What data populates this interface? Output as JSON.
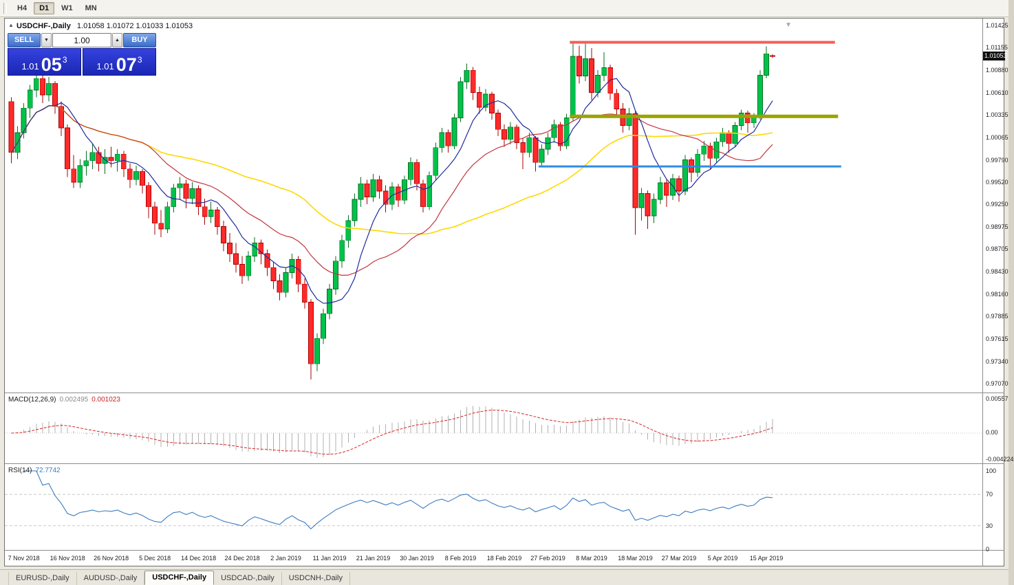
{
  "toolbar": {
    "timeframes": [
      {
        "label": "H4",
        "active": false
      },
      {
        "label": "D1",
        "active": true
      },
      {
        "label": "W1",
        "active": false
      },
      {
        "label": "MN",
        "active": false
      }
    ]
  },
  "chart_header": {
    "symbol_title": "USDCHF-,Daily",
    "ohlc": "1.01058 1.01072 1.01033 1.01053"
  },
  "trade_panel": {
    "sell_label": "SELL",
    "buy_label": "BUY",
    "volume": "1.00",
    "spin_down": "▼",
    "spin_up": "▲",
    "bid_small": "1.01",
    "bid_big": "05",
    "bid_sup": "3",
    "ask_small": "1.01",
    "ask_big": "07",
    "ask_sup": "3"
  },
  "price_axis": {
    "labels": [
      "1.01425",
      "1.01155",
      "1.00880",
      "1.00610",
      "1.00335",
      "1.00065",
      "0.99790",
      "0.99520",
      "0.99250",
      "0.98975",
      "0.98705",
      "0.98430",
      "0.98160",
      "0.97885",
      "0.97615",
      "0.97340",
      "0.97070"
    ],
    "current": "1.01053"
  },
  "macd_panel": {
    "title": "MACD(12,26,9)",
    "value1": "0.002495",
    "value2": "0.001023",
    "axis": [
      "0.00557",
      "0.00",
      "-0.004224"
    ]
  },
  "rsi_panel": {
    "title": "RSI(14)",
    "value": "72.7742",
    "axis": [
      "100",
      "70",
      "30",
      "0"
    ]
  },
  "tabs": [
    {
      "label": "EURUSD-,Daily",
      "active": false
    },
    {
      "label": "AUDUSD-,Daily",
      "active": false
    },
    {
      "label": "USDCHF-,Daily",
      "active": true
    },
    {
      "label": "USDCAD-,Daily",
      "active": false
    },
    {
      "label": "USDCNH-,Daily",
      "active": false
    }
  ],
  "chart_data": {
    "type": "candlestick",
    "symbol": "USDCHF",
    "timeframe": "Daily",
    "current_price": 1.01053,
    "price_scale": {
      "top": 1.01425,
      "bottom": 0.9707
    },
    "colors": {
      "bull": "#00c24a",
      "bull_border": "#066e22",
      "bear": "#ff2a2a",
      "bear_border": "#a80000",
      "grid": "#c0c0c0"
    },
    "moving_averages": [
      {
        "name": "ma-slow",
        "period": 45,
        "color": "#ffd800",
        "width": 1.6
      },
      {
        "name": "ma-mid",
        "period": 21,
        "color": "#c2353f",
        "width": 1.2
      },
      {
        "name": "ma-fast",
        "period": 8,
        "color": "#1f2a9e",
        "width": 1.2
      }
    ],
    "horizontal_lines": [
      {
        "name": "resistance-line-red",
        "price": 1.0122,
        "color": "#f2605a",
        "width": 4,
        "from_index": 89.5,
        "to_index": 132
      },
      {
        "name": "support-line-olive",
        "price": 1.0032,
        "color": "#9aa400",
        "width": 5,
        "from_index": 89.5,
        "to_index": 132.5
      },
      {
        "name": "support-line-blue",
        "price": 0.9971,
        "color": "#2e8be6",
        "width": 3,
        "from_index": 84.5,
        "to_index": 133
      }
    ],
    "macd": {
      "fast": 12,
      "slow": 26,
      "signal": 9,
      "hist_color": "#b0b0b0",
      "signal_color": "#d42424"
    },
    "rsi": {
      "period": 14,
      "color": "#3a7abf",
      "levels": [
        70,
        30
      ]
    },
    "date_ticks": [
      {
        "i": 2,
        "label": "7 Nov 2018"
      },
      {
        "i": 9,
        "label": "16 Nov 2018"
      },
      {
        "i": 16,
        "label": "26 Nov 2018"
      },
      {
        "i": 23,
        "label": "5 Dec 2018"
      },
      {
        "i": 30,
        "label": "14 Dec 2018"
      },
      {
        "i": 37,
        "label": "24 Dec 2018"
      },
      {
        "i": 44,
        "label": "2 Jan 2019"
      },
      {
        "i": 51,
        "label": "11 Jan 2019"
      },
      {
        "i": 58,
        "label": "21 Jan 2019"
      },
      {
        "i": 65,
        "label": "30 Jan 2019"
      },
      {
        "i": 72,
        "label": "8 Feb 2019"
      },
      {
        "i": 79,
        "label": "18 Feb 2019"
      },
      {
        "i": 86,
        "label": "27 Feb 2019"
      },
      {
        "i": 93,
        "label": "8 Mar 2019"
      },
      {
        "i": 100,
        "label": "18 Mar 2019"
      },
      {
        "i": 107,
        "label": "27 Mar 2019"
      },
      {
        "i": 114,
        "label": "5 Apr 2019"
      },
      {
        "i": 121,
        "label": "15 Apr 2019"
      }
    ],
    "ohlc": [
      [
        1.005,
        1.0055,
        0.9975,
        0.9988
      ],
      [
        0.9988,
        1.002,
        0.998,
        1.0012
      ],
      [
        1.0012,
        1.0048,
        1.0005,
        1.0042
      ],
      [
        1.0042,
        1.007,
        1.003,
        1.0064
      ],
      [
        1.0064,
        1.0088,
        1.0055,
        1.0078
      ],
      [
        1.0078,
        1.0085,
        1.0048,
        1.0058
      ],
      [
        1.0058,
        1.008,
        1.005,
        1.0072
      ],
      [
        1.0072,
        1.0075,
        1.0035,
        1.0044
      ],
      [
        1.0044,
        1.005,
        1.0008,
        1.0018
      ],
      [
        1.0018,
        1.0022,
        0.9958,
        0.9968
      ],
      [
        0.9968,
        0.9985,
        0.9945,
        0.9952
      ],
      [
        0.9952,
        0.998,
        0.9945,
        0.9972
      ],
      [
        0.9972,
        0.999,
        0.996,
        0.9978
      ],
      [
        0.9978,
        0.9998,
        0.9968,
        0.9988
      ],
      [
        0.9988,
        0.9995,
        0.9965,
        0.9975
      ],
      [
        0.9975,
        0.9992,
        0.9962,
        0.9982
      ],
      [
        0.9982,
        0.9995,
        0.997,
        0.9978
      ],
      [
        0.9978,
        0.9992,
        0.9965,
        0.9986
      ],
      [
        0.9986,
        0.999,
        0.9958,
        0.9968
      ],
      [
        0.9968,
        0.9975,
        0.9945,
        0.9955
      ],
      [
        0.9955,
        0.9972,
        0.9948,
        0.9965
      ],
      [
        0.9965,
        0.9968,
        0.9938,
        0.9948
      ],
      [
        0.9948,
        0.9952,
        0.9908,
        0.9922
      ],
      [
        0.9922,
        0.9928,
        0.9888,
        0.9902
      ],
      [
        0.9902,
        0.9918,
        0.9885,
        0.9895
      ],
      [
        0.9895,
        0.9928,
        0.989,
        0.9922
      ],
      [
        0.9922,
        0.995,
        0.9915,
        0.9945
      ],
      [
        0.9945,
        0.9958,
        0.993,
        0.995
      ],
      [
        0.995,
        0.9955,
        0.992,
        0.9932
      ],
      [
        0.9932,
        0.9952,
        0.9925,
        0.9944
      ],
      [
        0.9944,
        0.9948,
        0.9912,
        0.9922
      ],
      [
        0.9922,
        0.9932,
        0.99,
        0.991
      ],
      [
        0.991,
        0.9928,
        0.9902,
        0.9918
      ],
      [
        0.9918,
        0.9922,
        0.9888,
        0.9898
      ],
      [
        0.9898,
        0.9905,
        0.9868,
        0.9878
      ],
      [
        0.9878,
        0.989,
        0.9855,
        0.9865
      ],
      [
        0.9865,
        0.9878,
        0.9842,
        0.9852
      ],
      [
        0.9852,
        0.9862,
        0.9828,
        0.9838
      ],
      [
        0.9838,
        0.9868,
        0.9832,
        0.9862
      ],
      [
        0.9862,
        0.9885,
        0.9855,
        0.9878
      ],
      [
        0.9878,
        0.9882,
        0.9852,
        0.9865
      ],
      [
        0.9865,
        0.987,
        0.9838,
        0.9848
      ],
      [
        0.9848,
        0.9855,
        0.9822,
        0.9832
      ],
      [
        0.9832,
        0.984,
        0.9808,
        0.9818
      ],
      [
        0.9818,
        0.9848,
        0.9812,
        0.9842
      ],
      [
        0.9842,
        0.9865,
        0.9835,
        0.9858
      ],
      [
        0.9858,
        0.9862,
        0.9818,
        0.9828
      ],
      [
        0.9828,
        0.9835,
        0.9798,
        0.9806
      ],
      [
        0.9806,
        0.981,
        0.9712,
        0.9731
      ],
      [
        0.9731,
        0.9768,
        0.9722,
        0.9762
      ],
      [
        0.9762,
        0.9798,
        0.9755,
        0.9792
      ],
      [
        0.9792,
        0.9828,
        0.9785,
        0.9822
      ],
      [
        0.9822,
        0.9862,
        0.9815,
        0.9856
      ],
      [
        0.9856,
        0.9888,
        0.9848,
        0.9881
      ],
      [
        0.9881,
        0.9912,
        0.9872,
        0.9905
      ],
      [
        0.9905,
        0.9938,
        0.9898,
        0.9931
      ],
      [
        0.9931,
        0.9958,
        0.9922,
        0.995
      ],
      [
        0.995,
        0.9955,
        0.9925,
        0.9934
      ],
      [
        0.9934,
        0.9962,
        0.9928,
        0.9955
      ],
      [
        0.9955,
        0.996,
        0.9932,
        0.9941
      ],
      [
        0.9941,
        0.9948,
        0.9915,
        0.9925
      ],
      [
        0.9925,
        0.9952,
        0.9918,
        0.9946
      ],
      [
        0.9946,
        0.995,
        0.9922,
        0.993
      ],
      [
        0.993,
        0.996,
        0.9925,
        0.9955
      ],
      [
        0.9955,
        0.9982,
        0.9948,
        0.9976
      ],
      [
        0.9976,
        0.998,
        0.9942,
        0.995
      ],
      [
        0.995,
        0.9955,
        0.9915,
        0.9922
      ],
      [
        0.9922,
        0.9965,
        0.9918,
        0.996
      ],
      [
        0.996,
        1.0,
        0.9955,
        0.9994
      ],
      [
        0.9994,
        1.0018,
        0.9988,
        1.0012
      ],
      [
        1.0012,
        1.0016,
        0.9988,
        0.9996
      ],
      [
        0.9996,
        1.0035,
        0.9992,
        1.003
      ],
      [
        1.003,
        1.008,
        1.0025,
        1.0074
      ],
      [
        1.0074,
        1.0096,
        1.0065,
        1.0088
      ],
      [
        1.0088,
        1.0092,
        1.0052,
        1.0061
      ],
      [
        1.0061,
        1.0068,
        1.0035,
        1.0043
      ],
      [
        1.0043,
        1.0065,
        1.0038,
        1.0059
      ],
      [
        1.0059,
        1.0062,
        1.0028,
        1.0036
      ],
      [
        1.0036,
        1.004,
        1.0008,
        1.0016
      ],
      [
        1.0016,
        1.0022,
        0.9995,
        1.0004
      ],
      [
        1.0004,
        1.0025,
        0.9998,
        1.0019
      ],
      [
        1.0019,
        1.0022,
        0.9992,
        1.0
      ],
      [
        1.0,
        1.0005,
        0.9968,
        0.9988
      ],
      [
        0.9988,
        1.0012,
        0.9982,
        1.0006
      ],
      [
        1.0006,
        1.0008,
        0.9965,
        0.9976
      ],
      [
        0.9976,
        0.9998,
        0.997,
        0.9992
      ],
      [
        0.9992,
        1.0012,
        0.9985,
        1.0006
      ],
      [
        1.0006,
        1.0028,
        1.0,
        1.0022
      ],
      [
        1.0022,
        1.0025,
        0.999,
        0.9996
      ],
      [
        0.9996,
        1.0035,
        0.9992,
        1.003
      ],
      [
        1.003,
        1.0122,
        1.0026,
        1.0105
      ],
      [
        1.0105,
        1.0118,
        1.0072,
        1.0081
      ],
      [
        1.0081,
        1.0122,
        1.0075,
        1.0102
      ],
      [
        1.0102,
        1.0115,
        1.0052,
        1.0061
      ],
      [
        1.0061,
        1.0088,
        1.0055,
        1.0082
      ],
      [
        1.0082,
        1.011,
        1.0075,
        1.0091
      ],
      [
        1.0091,
        1.0095,
        1.0052,
        1.006
      ],
      [
        1.006,
        1.0065,
        1.0032,
        1.0041
      ],
      [
        1.0041,
        1.0048,
        1.0012,
        1.0021
      ],
      [
        1.0021,
        1.0042,
        1.0015,
        1.0035
      ],
      [
        1.0035,
        1.0038,
        0.9888,
        0.9921
      ],
      [
        0.9921,
        0.9945,
        0.9905,
        0.9938
      ],
      [
        0.9938,
        0.9942,
        0.9895,
        0.9911
      ],
      [
        0.9911,
        0.9938,
        0.9902,
        0.9931
      ],
      [
        0.9931,
        0.9958,
        0.9925,
        0.9951
      ],
      [
        0.9951,
        0.9955,
        0.9922,
        0.9936
      ],
      [
        0.9936,
        0.9962,
        0.993,
        0.9956
      ],
      [
        0.9956,
        0.996,
        0.9928,
        0.9941
      ],
      [
        0.9941,
        0.9985,
        0.9936,
        0.9979
      ],
      [
        0.9979,
        0.9982,
        0.9952,
        0.9964
      ],
      [
        0.9964,
        0.9992,
        0.9958,
        0.9986
      ],
      [
        0.9986,
        1.0002,
        0.9978,
        0.9996
      ],
      [
        0.9996,
        1.0,
        0.9968,
        0.9981
      ],
      [
        0.9981,
        1.0006,
        0.9975,
        1.0001
      ],
      [
        1.0001,
        1.0018,
        0.9995,
        1.0012
      ],
      [
        1.0012,
        1.0015,
        0.9988,
        0.9999
      ],
      [
        0.9999,
        1.0025,
        0.9994,
        1.0021
      ],
      [
        1.0021,
        1.004,
        1.0015,
        1.0036
      ],
      [
        1.0036,
        1.0039,
        1.0012,
        1.0024
      ],
      [
        1.0024,
        1.0036,
        1.0018,
        1.0032
      ],
      [
        1.0032,
        1.0088,
        1.0028,
        1.0082
      ],
      [
        1.0082,
        1.0117,
        1.0078,
        1.0108
      ],
      [
        1.01058,
        1.01072,
        1.01033,
        1.01053
      ]
    ]
  }
}
